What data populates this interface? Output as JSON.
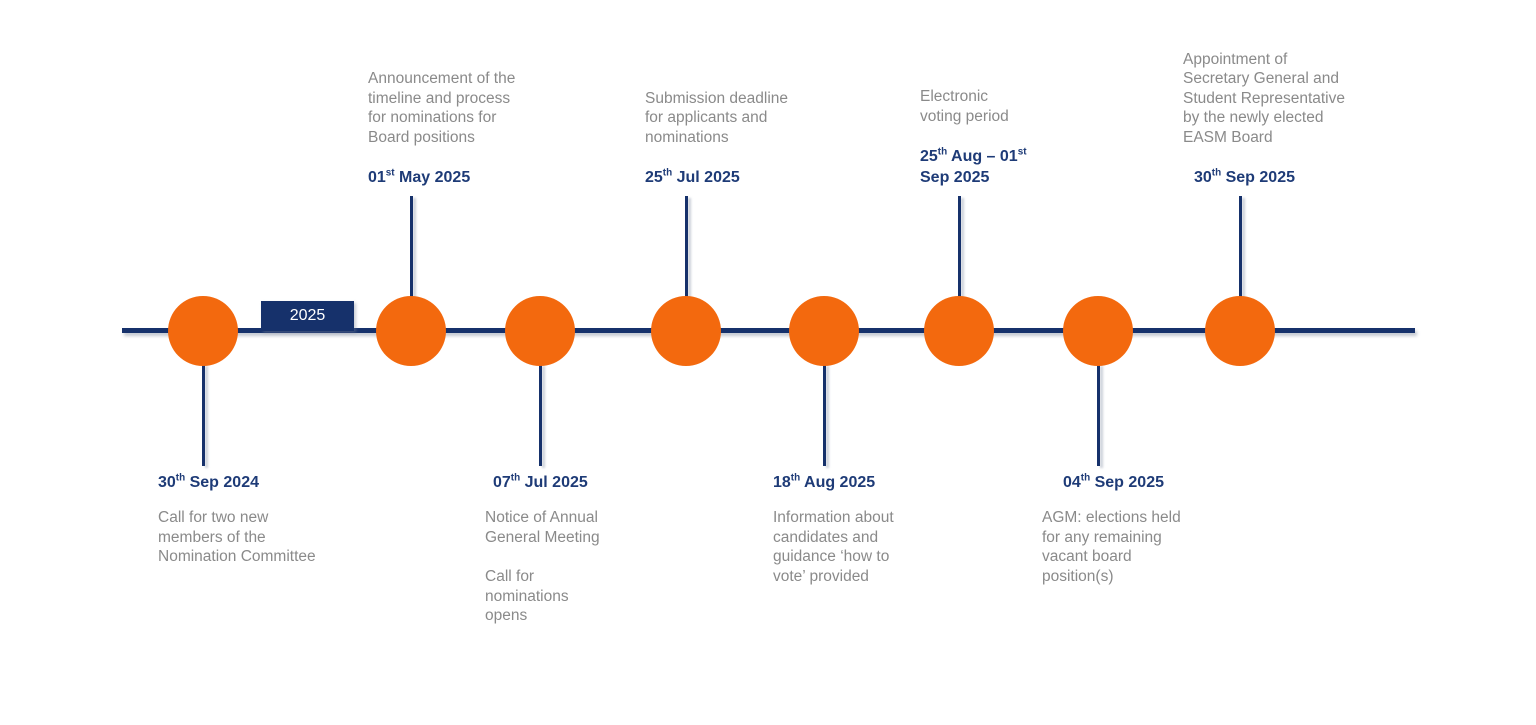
{
  "year_label": "2025",
  "colors": {
    "node_orange": "#F3690E",
    "line_navy": "#16316B",
    "date_navy": "#1E3B77",
    "description_gray": "#8A8A8A",
    "badge_text": "#FFFFFF"
  },
  "events": [
    {
      "id": "call-nomination-committee",
      "side": "below",
      "date_segments": [
        {
          "text": "30"
        },
        {
          "sup": "th"
        },
        {
          "text": " Sep 2024"
        }
      ],
      "description": "Call for two new\nmembers of the\nNomination Committee"
    },
    {
      "id": "announcement-timeline",
      "side": "above",
      "date_segments": [
        {
          "text": "01"
        },
        {
          "sup": "st"
        },
        {
          "text": " May 2025"
        }
      ],
      "description": "Announcement of the\ntimeline and process\nfor nominations for\nBoard positions"
    },
    {
      "id": "notice-agm",
      "side": "below",
      "date_segments": [
        {
          "text": "07"
        },
        {
          "sup": "th"
        },
        {
          "text": " Jul 2025"
        }
      ],
      "description": "Notice of Annual\nGeneral Meeting",
      "description2": "Call for\nnominations\nopens"
    },
    {
      "id": "submission-deadline",
      "side": "above",
      "date_segments": [
        {
          "text": "25"
        },
        {
          "sup": "th"
        },
        {
          "text": " Jul 2025"
        }
      ],
      "description": "Submission deadline\nfor applicants and\nnominations"
    },
    {
      "id": "candidate-information",
      "side": "below",
      "date_segments": [
        {
          "text": "18"
        },
        {
          "sup": "th"
        },
        {
          "text": " Aug 2025"
        }
      ],
      "description": "Information about\ncandidates and\nguidance ‘how to\nvote’ provided"
    },
    {
      "id": "electronic-voting",
      "side": "above",
      "date_segments": [
        {
          "text": "25"
        },
        {
          "sup": "th"
        },
        {
          "text": " Aug – 01"
        },
        {
          "sup": "st"
        },
        {
          "text": "\nSep 2025"
        }
      ],
      "description": "Electronic\nvoting period"
    },
    {
      "id": "agm-elections",
      "side": "below",
      "date_segments": [
        {
          "text": "04"
        },
        {
          "sup": "th"
        },
        {
          "text": " Sep 2025"
        }
      ],
      "description": "AGM: elections held\nfor any remaining\nvacant board\nposition(s)"
    },
    {
      "id": "appointment-secretary-general",
      "side": "above",
      "date_segments": [
        {
          "text": "30"
        },
        {
          "sup": "th"
        },
        {
          "text": " Sep 2025"
        }
      ],
      "description": "Appointment of\nSecretary General and\nStudent Representative\nby the newly elected\nEASM Board"
    }
  ]
}
